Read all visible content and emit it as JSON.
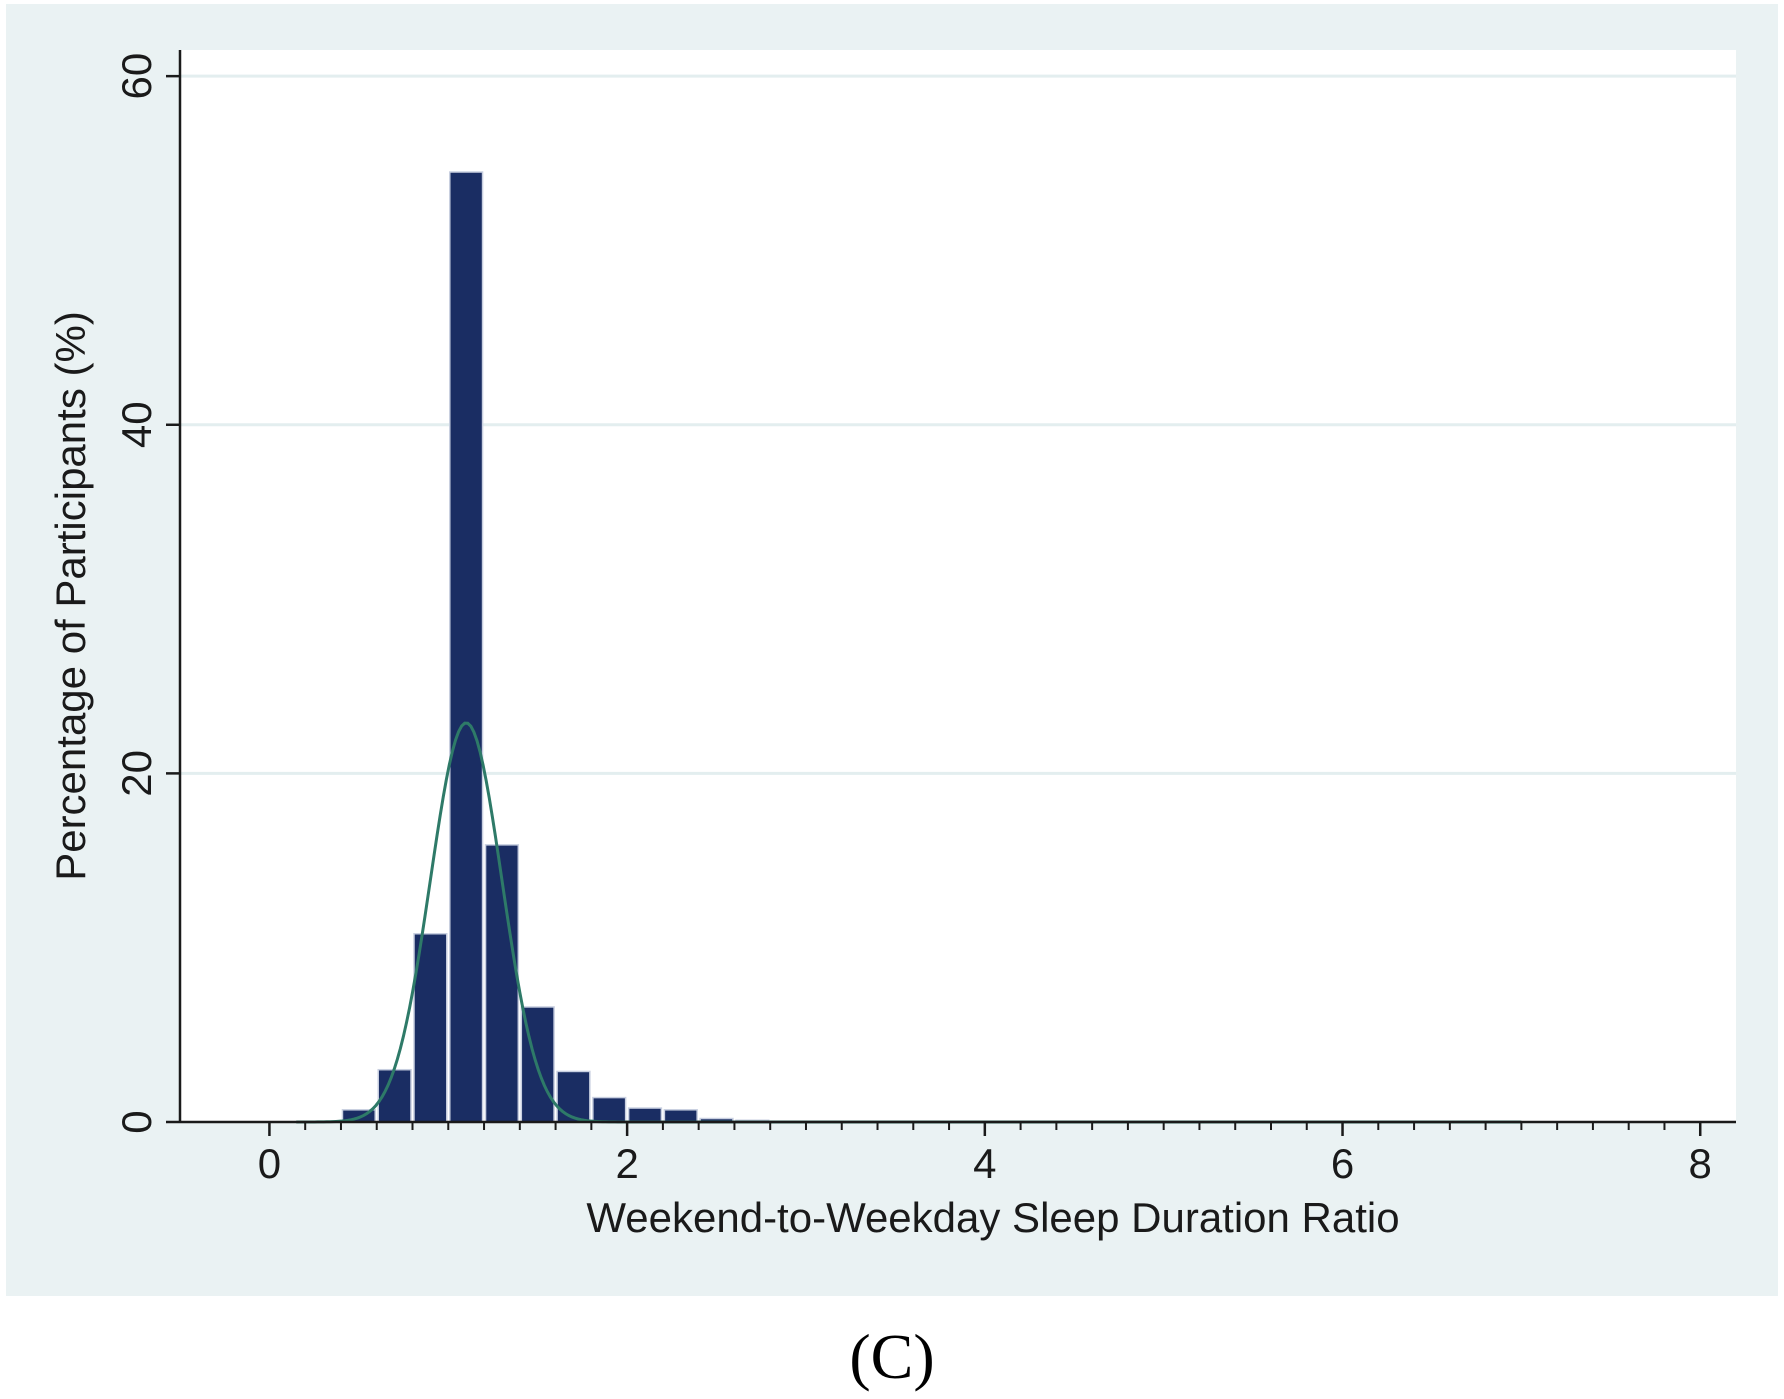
{
  "panel_label": "(C)",
  "colors": {
    "outer_background": "#eaf2f3",
    "plot_background": "#ffffff",
    "gridline": "#e3eeef",
    "bar_fill": "#1a2d63",
    "bar_edge": "#c8cfe0",
    "curve": "#2e7a68",
    "axis": "#1a1a1a"
  },
  "chart_data": {
    "type": "bar",
    "subtype": "histogram with normal density overlay",
    "xlabel": "Weekend-to-Weekday Sleep Duration Ratio",
    "ylabel": "Percentage of Participants (%)",
    "xlim": [
      -0.5,
      8.2
    ],
    "ylim": [
      0,
      61.5
    ],
    "x_ticks": [
      0,
      2,
      4,
      6,
      8
    ],
    "x_tick_labels": [
      "0",
      "2",
      "4",
      "6",
      "8"
    ],
    "x_minor_tick_step": 0.2,
    "y_ticks": [
      0,
      20,
      40,
      60
    ],
    "y_tick_labels": [
      "0",
      "20",
      "40",
      "60"
    ],
    "grid": "horizontal",
    "legend": "none",
    "bin_width": 0.2,
    "bins": [
      {
        "x": 0.6,
        "value": 0.7
      },
      {
        "x": 0.8,
        "value": 3.0
      },
      {
        "x": 1.0,
        "value": 10.8
      },
      {
        "x": 1.2,
        "value": 54.5
      },
      {
        "x": 1.4,
        "value": 15.9
      },
      {
        "x": 1.6,
        "value": 6.6
      },
      {
        "x": 1.8,
        "value": 2.9
      },
      {
        "x": 2.0,
        "value": 1.4
      },
      {
        "x": 2.2,
        "value": 0.8
      },
      {
        "x": 2.4,
        "value": 0.7
      },
      {
        "x": 2.6,
        "value": 0.2
      },
      {
        "x": 2.8,
        "value": 0.1
      }
    ],
    "normal_curve": {
      "mean": 1.1,
      "sd": 0.2,
      "peak": 22.9,
      "x_range": [
        0.15,
        7.0
      ]
    }
  }
}
